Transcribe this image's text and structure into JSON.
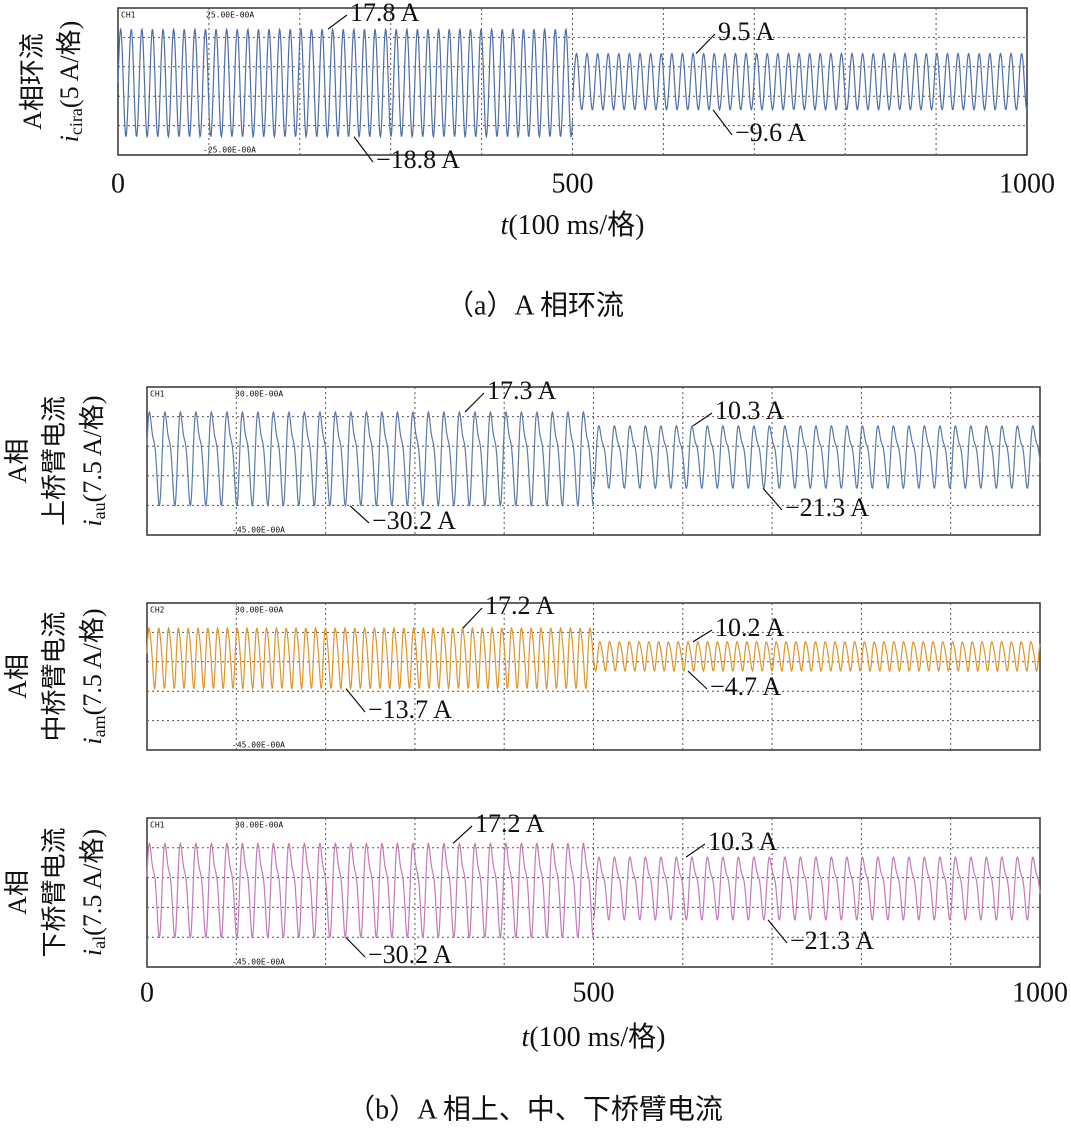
{
  "captions": [
    "（a）A 相环流",
    "（b）A 相上、中、下桥臂电流"
  ],
  "chart_data": [
    {
      "type": "oscilloscope",
      "ylabel_lines": [
        "A相环流"
      ],
      "ylabel_symbol": "i",
      "ylabel_sub": "cira",
      "ylabel_unit": "(5 A/格)",
      "color": "#4f6fa8",
      "scope_labels": [
        "CH1",
        "25.00E-00A",
        "-25.00E-00A"
      ],
      "ylim": [
        -25,
        25
      ],
      "ygrid": [
        -15,
        -5,
        5,
        15
      ],
      "xlim": [
        0,
        1000
      ],
      "xgrid": [
        100,
        200,
        300,
        400,
        500,
        600,
        700,
        800,
        900
      ],
      "xticks": [
        0,
        500,
        1000
      ],
      "xlabel_var": "t",
      "xlabel_unit": "(100 ms/格)",
      "segments": [
        {
          "xlim": [
            0,
            500
          ],
          "max": 17.8,
          "min": -18.8,
          "max_label": "17.8 A",
          "min_label": "−18.8 A"
        },
        {
          "xlim": [
            500,
            1000
          ],
          "max": 9.5,
          "min": -9.6,
          "max_label": "9.5 A",
          "min_label": "−9.6 A"
        }
      ]
    },
    {
      "type": "oscilloscope",
      "ylabel_lines": [
        "A相",
        "上桥臂电流"
      ],
      "ylabel_symbol": "i",
      "ylabel_sub": "au",
      "ylabel_unit": "(7.5 A/格)",
      "color": "#5a7aa8",
      "scope_labels": [
        "CH1",
        "30.00E-00A",
        "-45.00E-00A"
      ],
      "ylim": [
        -45,
        30
      ],
      "ygrid": [
        -30,
        -15,
        0,
        15
      ],
      "xlim": [
        0,
        1000
      ],
      "xgrid": [
        100,
        200,
        300,
        400,
        500,
        600,
        700,
        800,
        900
      ],
      "segments": [
        {
          "xlim": [
            0,
            500
          ],
          "max": 17.3,
          "min": -30.2,
          "max_label": "17.3 A",
          "min_label": "−30.2 A"
        },
        {
          "xlim": [
            500,
            1000
          ],
          "max": 10.3,
          "min": -21.3,
          "max_label": "10.3 A",
          "min_label": "−21.3 A"
        }
      ]
    },
    {
      "type": "oscilloscope",
      "ylabel_lines": [
        "A相",
        "中桥臂电流"
      ],
      "ylabel_symbol": "i",
      "ylabel_sub": "am",
      "ylabel_unit": "(7.5 A/格)",
      "color": "#e0952a",
      "scope_labels": [
        "CH2",
        "30.00E-00A",
        "-45.00E-00A"
      ],
      "ylim": [
        -45,
        30
      ],
      "ygrid": [
        -30,
        -15,
        0,
        15
      ],
      "xlim": [
        0,
        1000
      ],
      "xgrid": [
        100,
        200,
        300,
        400,
        500,
        600,
        700,
        800,
        900
      ],
      "segments": [
        {
          "xlim": [
            0,
            500
          ],
          "max": 17.2,
          "min": -13.7,
          "max_label": "17.2 A",
          "min_label": "−13.7 A"
        },
        {
          "xlim": [
            500,
            1000
          ],
          "max": 10.2,
          "min": -4.7,
          "max_label": "10.2 A",
          "min_label": "−4.7 A"
        }
      ]
    },
    {
      "type": "oscilloscope",
      "ylabel_lines": [
        "A相",
        "下桥臂电流"
      ],
      "ylabel_symbol": "i",
      "ylabel_sub": "al",
      "ylabel_unit": "(7.5 A/格)",
      "color": "#c47ab8",
      "scope_labels": [
        "CH1",
        "30.00E-00A",
        "-45.00E-00A"
      ],
      "ylim": [
        -45,
        30
      ],
      "ygrid": [
        -30,
        -15,
        0,
        15
      ],
      "xlim": [
        0,
        1000
      ],
      "xgrid": [
        100,
        200,
        300,
        400,
        500,
        600,
        700,
        800,
        900
      ],
      "xticks": [
        0,
        500,
        1000
      ],
      "xlabel_var": "t",
      "xlabel_unit": "(100 ms/格)",
      "segments": [
        {
          "xlim": [
            0,
            500
          ],
          "max": 17.2,
          "min": -30.2,
          "max_label": "17.2 A",
          "min_label": "−30.2 A"
        },
        {
          "xlim": [
            500,
            1000
          ],
          "max": 10.3,
          "min": -21.3,
          "max_label": "10.3 A",
          "min_label": "−21.3 A"
        }
      ]
    }
  ]
}
